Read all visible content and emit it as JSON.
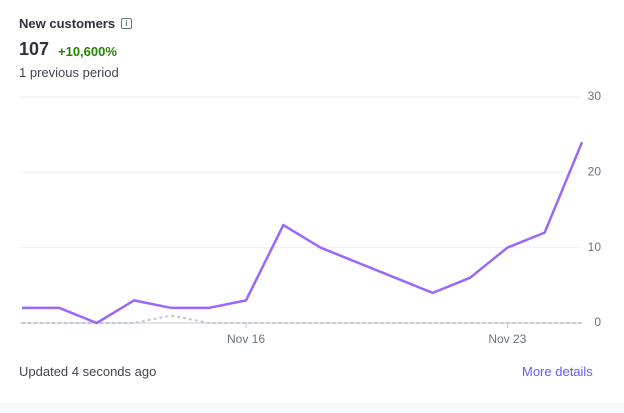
{
  "header": {
    "title": "New customers",
    "value": "107",
    "change": "+10,600%",
    "comparison": "1 previous period"
  },
  "chart_data": {
    "type": "line",
    "categories": [
      null,
      null,
      null,
      null,
      null,
      null,
      "Nov 16",
      null,
      null,
      null,
      null,
      null,
      null,
      "Nov 23",
      null,
      null
    ],
    "series": [
      {
        "color": "#9966ff",
        "values": [
          2,
          2,
          0,
          3,
          2,
          2,
          3,
          13,
          10,
          8,
          6,
          4,
          6,
          10,
          12,
          24
        ]
      },
      {
        "color": "#c0c8d2",
        "dashed": true,
        "values": [
          0,
          0,
          0,
          0,
          1,
          0,
          0,
          0,
          0,
          0,
          0,
          0,
          0,
          0,
          0,
          0
        ]
      }
    ],
    "ylim": [
      0,
      30
    ],
    "yticks": [
      0,
      10,
      20,
      30
    ],
    "grid": true
  },
  "footer": {
    "updated": "Updated 4 seconds ago",
    "link": "More details"
  }
}
